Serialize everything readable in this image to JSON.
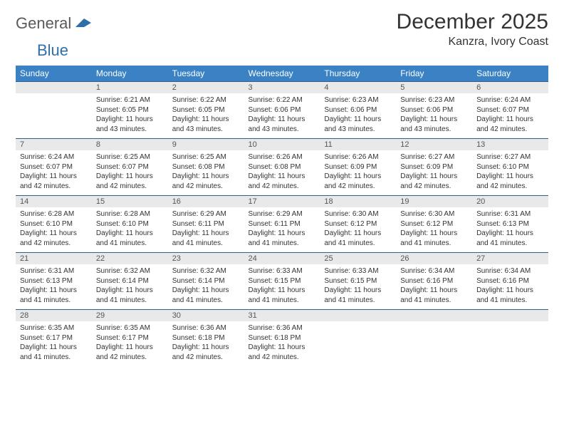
{
  "logo": {
    "general": "General",
    "blue": "Blue"
  },
  "title": "December 2025",
  "location": "Kanzra, Ivory Coast",
  "colors": {
    "header_bg": "#3a82c4",
    "header_text": "#ffffff",
    "daynum_bg": "#e9e9e9",
    "row_border": "#2f5f8f",
    "logo_blue": "#2f6fa8",
    "logo_gray": "#5a5a5a"
  },
  "weekdays": [
    "Sunday",
    "Monday",
    "Tuesday",
    "Wednesday",
    "Thursday",
    "Friday",
    "Saturday"
  ],
  "weeks": [
    {
      "nums": [
        "",
        "1",
        "2",
        "3",
        "4",
        "5",
        "6"
      ],
      "cells": [
        null,
        {
          "sunrise": "6:21 AM",
          "sunset": "6:05 PM",
          "daylight": "11 hours and 43 minutes."
        },
        {
          "sunrise": "6:22 AM",
          "sunset": "6:05 PM",
          "daylight": "11 hours and 43 minutes."
        },
        {
          "sunrise": "6:22 AM",
          "sunset": "6:06 PM",
          "daylight": "11 hours and 43 minutes."
        },
        {
          "sunrise": "6:23 AM",
          "sunset": "6:06 PM",
          "daylight": "11 hours and 43 minutes."
        },
        {
          "sunrise": "6:23 AM",
          "sunset": "6:06 PM",
          "daylight": "11 hours and 43 minutes."
        },
        {
          "sunrise": "6:24 AM",
          "sunset": "6:07 PM",
          "daylight": "11 hours and 42 minutes."
        }
      ]
    },
    {
      "nums": [
        "7",
        "8",
        "9",
        "10",
        "11",
        "12",
        "13"
      ],
      "cells": [
        {
          "sunrise": "6:24 AM",
          "sunset": "6:07 PM",
          "daylight": "11 hours and 42 minutes."
        },
        {
          "sunrise": "6:25 AM",
          "sunset": "6:07 PM",
          "daylight": "11 hours and 42 minutes."
        },
        {
          "sunrise": "6:25 AM",
          "sunset": "6:08 PM",
          "daylight": "11 hours and 42 minutes."
        },
        {
          "sunrise": "6:26 AM",
          "sunset": "6:08 PM",
          "daylight": "11 hours and 42 minutes."
        },
        {
          "sunrise": "6:26 AM",
          "sunset": "6:09 PM",
          "daylight": "11 hours and 42 minutes."
        },
        {
          "sunrise": "6:27 AM",
          "sunset": "6:09 PM",
          "daylight": "11 hours and 42 minutes."
        },
        {
          "sunrise": "6:27 AM",
          "sunset": "6:10 PM",
          "daylight": "11 hours and 42 minutes."
        }
      ]
    },
    {
      "nums": [
        "14",
        "15",
        "16",
        "17",
        "18",
        "19",
        "20"
      ],
      "cells": [
        {
          "sunrise": "6:28 AM",
          "sunset": "6:10 PM",
          "daylight": "11 hours and 42 minutes."
        },
        {
          "sunrise": "6:28 AM",
          "sunset": "6:10 PM",
          "daylight": "11 hours and 41 minutes."
        },
        {
          "sunrise": "6:29 AM",
          "sunset": "6:11 PM",
          "daylight": "11 hours and 41 minutes."
        },
        {
          "sunrise": "6:29 AM",
          "sunset": "6:11 PM",
          "daylight": "11 hours and 41 minutes."
        },
        {
          "sunrise": "6:30 AM",
          "sunset": "6:12 PM",
          "daylight": "11 hours and 41 minutes."
        },
        {
          "sunrise": "6:30 AM",
          "sunset": "6:12 PM",
          "daylight": "11 hours and 41 minutes."
        },
        {
          "sunrise": "6:31 AM",
          "sunset": "6:13 PM",
          "daylight": "11 hours and 41 minutes."
        }
      ]
    },
    {
      "nums": [
        "21",
        "22",
        "23",
        "24",
        "25",
        "26",
        "27"
      ],
      "cells": [
        {
          "sunrise": "6:31 AM",
          "sunset": "6:13 PM",
          "daylight": "11 hours and 41 minutes."
        },
        {
          "sunrise": "6:32 AM",
          "sunset": "6:14 PM",
          "daylight": "11 hours and 41 minutes."
        },
        {
          "sunrise": "6:32 AM",
          "sunset": "6:14 PM",
          "daylight": "11 hours and 41 minutes."
        },
        {
          "sunrise": "6:33 AM",
          "sunset": "6:15 PM",
          "daylight": "11 hours and 41 minutes."
        },
        {
          "sunrise": "6:33 AM",
          "sunset": "6:15 PM",
          "daylight": "11 hours and 41 minutes."
        },
        {
          "sunrise": "6:34 AM",
          "sunset": "6:16 PM",
          "daylight": "11 hours and 41 minutes."
        },
        {
          "sunrise": "6:34 AM",
          "sunset": "6:16 PM",
          "daylight": "11 hours and 41 minutes."
        }
      ]
    },
    {
      "nums": [
        "28",
        "29",
        "30",
        "31",
        "",
        "",
        ""
      ],
      "cells": [
        {
          "sunrise": "6:35 AM",
          "sunset": "6:17 PM",
          "daylight": "11 hours and 41 minutes."
        },
        {
          "sunrise": "6:35 AM",
          "sunset": "6:17 PM",
          "daylight": "11 hours and 42 minutes."
        },
        {
          "sunrise": "6:36 AM",
          "sunset": "6:18 PM",
          "daylight": "11 hours and 42 minutes."
        },
        {
          "sunrise": "6:36 AM",
          "sunset": "6:18 PM",
          "daylight": "11 hours and 42 minutes."
        },
        null,
        null,
        null
      ]
    }
  ],
  "labels": {
    "sunrise": "Sunrise:",
    "sunset": "Sunset:",
    "daylight": "Daylight:"
  }
}
